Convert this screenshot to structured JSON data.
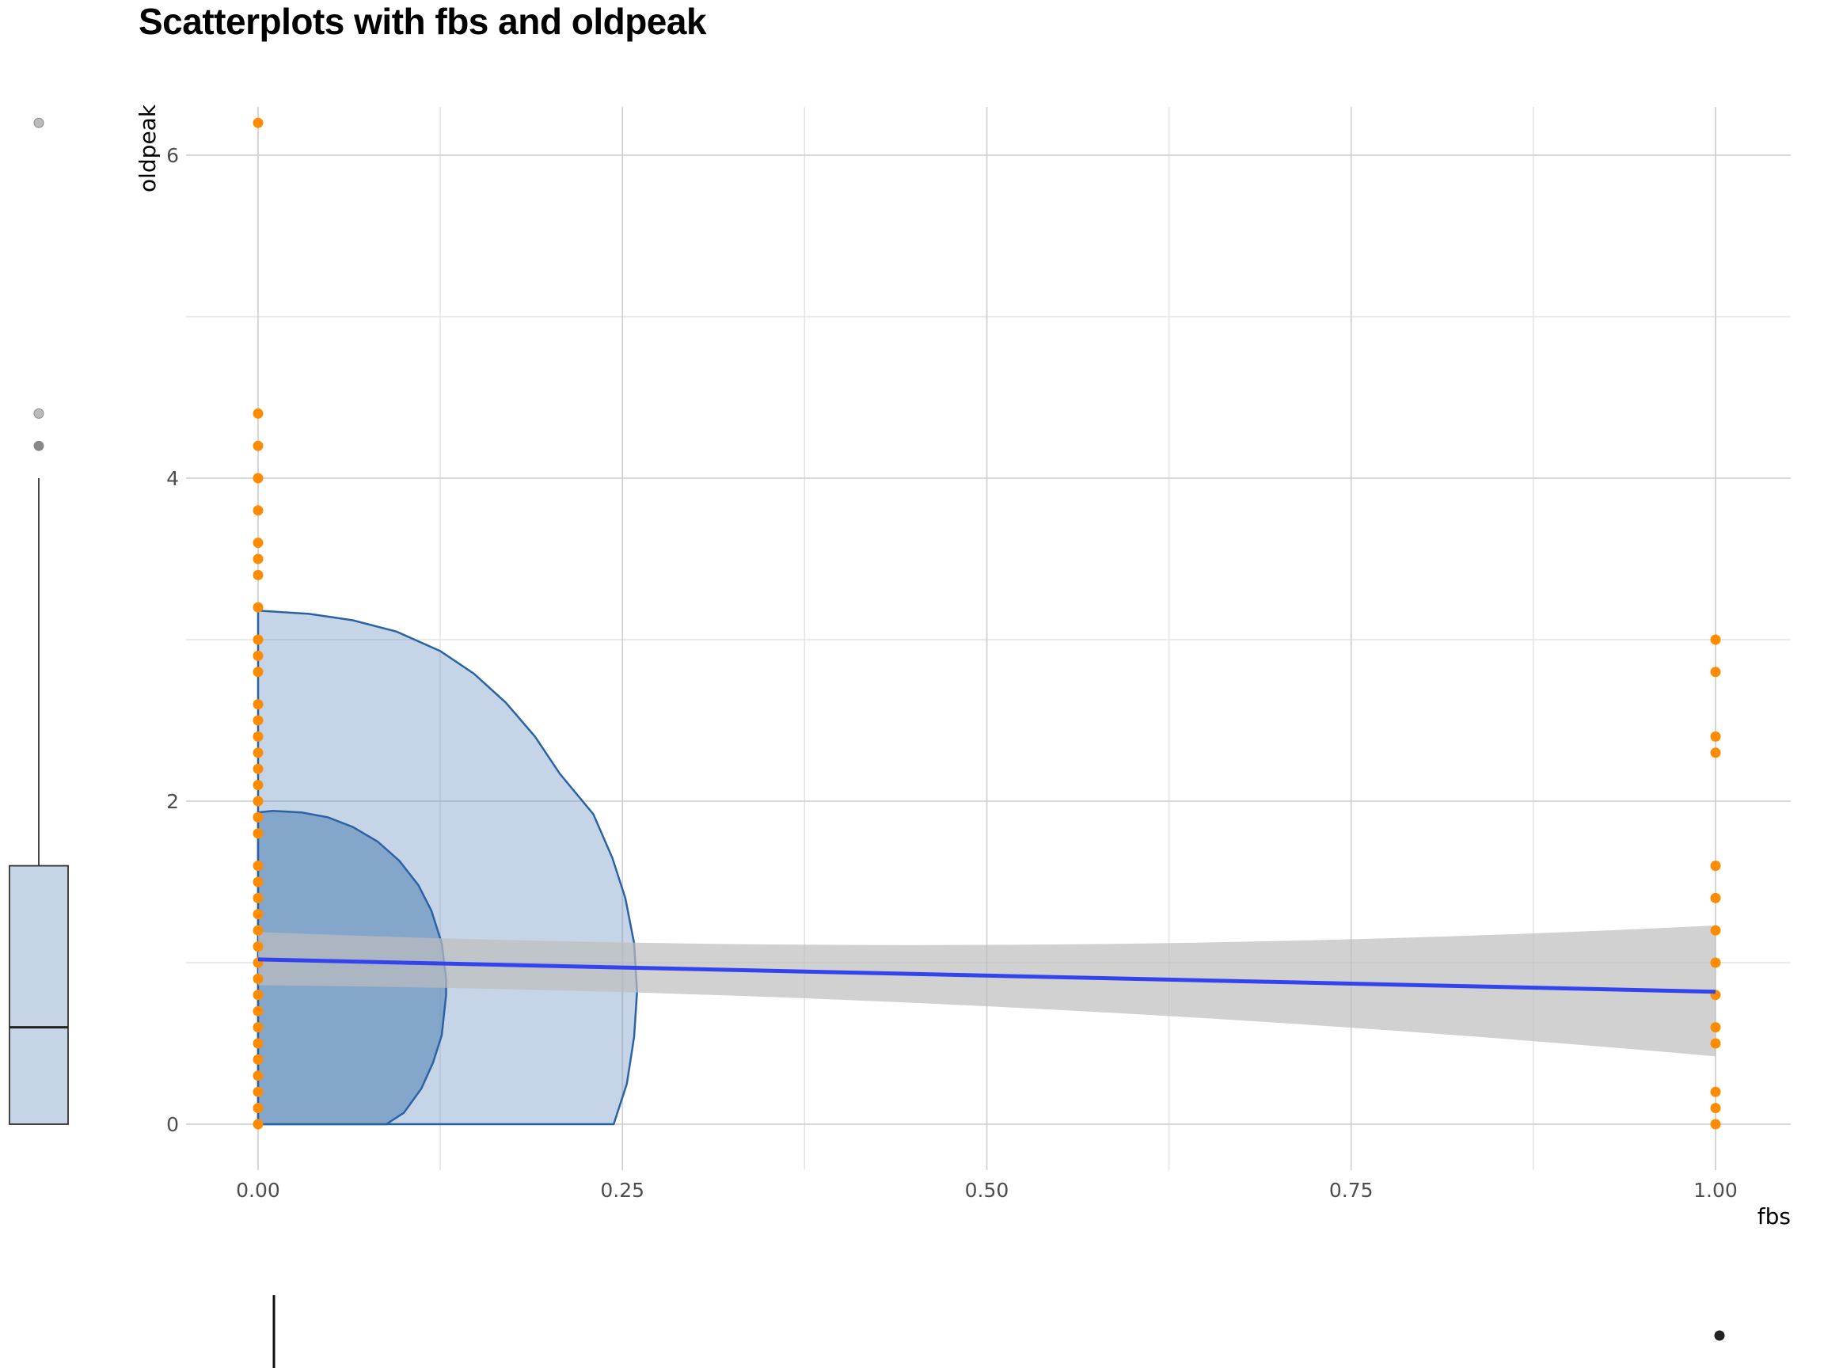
{
  "chart_data": {
    "type": "scatter",
    "title": "Scatterplots with fbs and oldpeak",
    "xlabel": "fbs",
    "ylabel": "oldpeak",
    "xlim": [
      -0.05,
      1.05
    ],
    "ylim": [
      -0.25,
      6.5
    ],
    "x_ticks": [
      "0.00",
      "0.25",
      "0.50",
      "0.75",
      "1.00"
    ],
    "y_ticks": [
      "0",
      "2",
      "4",
      "6"
    ],
    "grid": true,
    "point_color": "#ff8c00",
    "points": [
      {
        "x": 0,
        "y": 6.2
      },
      {
        "x": 0,
        "y": 4.4
      },
      {
        "x": 0,
        "y": 4.2
      },
      {
        "x": 0,
        "y": 4.0
      },
      {
        "x": 0,
        "y": 3.8
      },
      {
        "x": 0,
        "y": 3.6
      },
      {
        "x": 0,
        "y": 3.5
      },
      {
        "x": 0,
        "y": 3.4
      },
      {
        "x": 0,
        "y": 3.2
      },
      {
        "x": 0,
        "y": 3.0
      },
      {
        "x": 0,
        "y": 2.9
      },
      {
        "x": 0,
        "y": 2.8
      },
      {
        "x": 0,
        "y": 2.6
      },
      {
        "x": 0,
        "y": 2.5
      },
      {
        "x": 0,
        "y": 2.4
      },
      {
        "x": 0,
        "y": 2.3
      },
      {
        "x": 0,
        "y": 2.2
      },
      {
        "x": 0,
        "y": 2.1
      },
      {
        "x": 0,
        "y": 2.0
      },
      {
        "x": 0,
        "y": 1.9
      },
      {
        "x": 0,
        "y": 1.8
      },
      {
        "x": 0,
        "y": 1.6
      },
      {
        "x": 0,
        "y": 1.5
      },
      {
        "x": 0,
        "y": 1.4
      },
      {
        "x": 0,
        "y": 1.3
      },
      {
        "x": 0,
        "y": 1.2
      },
      {
        "x": 0,
        "y": 1.1
      },
      {
        "x": 0,
        "y": 1.0
      },
      {
        "x": 0,
        "y": 0.9
      },
      {
        "x": 0,
        "y": 0.8
      },
      {
        "x": 0,
        "y": 0.7
      },
      {
        "x": 0,
        "y": 0.6
      },
      {
        "x": 0,
        "y": 0.5
      },
      {
        "x": 0,
        "y": 0.4
      },
      {
        "x": 0,
        "y": 0.3
      },
      {
        "x": 0,
        "y": 0.2
      },
      {
        "x": 0,
        "y": 0.1
      },
      {
        "x": 0,
        "y": 0.0
      },
      {
        "x": 1,
        "y": 3.0
      },
      {
        "x": 1,
        "y": 2.8
      },
      {
        "x": 1,
        "y": 2.4
      },
      {
        "x": 1,
        "y": 2.3
      },
      {
        "x": 1,
        "y": 1.6
      },
      {
        "x": 1,
        "y": 1.4
      },
      {
        "x": 1,
        "y": 1.2
      },
      {
        "x": 1,
        "y": 1.0
      },
      {
        "x": 1,
        "y": 0.8
      },
      {
        "x": 1,
        "y": 0.6
      },
      {
        "x": 1,
        "y": 0.5
      },
      {
        "x": 1,
        "y": 0.2
      },
      {
        "x": 1,
        "y": 0.1
      },
      {
        "x": 1,
        "y": 0.0
      }
    ],
    "regression": {
      "color": "#3344ee",
      "band_color": "#bdbdbd",
      "line": [
        {
          "x": 0,
          "y": 1.02
        },
        {
          "x": 1,
          "y": 0.82
        }
      ],
      "band_upper": [
        {
          "x": 0,
          "y": 1.19
        },
        {
          "x": 0.5,
          "y": 1.11
        },
        {
          "x": 1,
          "y": 1.23
        }
      ],
      "band_lower": [
        {
          "x": 0,
          "y": 0.86
        },
        {
          "x": 0.5,
          "y": 0.73
        },
        {
          "x": 1,
          "y": 0.42
        }
      ]
    },
    "density_contours": {
      "fill_color": "#6e96c2",
      "stroke_color": "#2b62a3",
      "outer": [
        {
          "x": 0,
          "y": 0
        },
        {
          "x": 0,
          "y": 3.18
        },
        {
          "x": 0.035,
          "y": 3.16
        },
        {
          "x": 0.065,
          "y": 3.12
        },
        {
          "x": 0.095,
          "y": 3.05
        },
        {
          "x": 0.125,
          "y": 2.93
        },
        {
          "x": 0.148,
          "y": 2.79
        },
        {
          "x": 0.17,
          "y": 2.61
        },
        {
          "x": 0.19,
          "y": 2.4
        },
        {
          "x": 0.207,
          "y": 2.17
        },
        {
          "x": 0.23,
          "y": 1.92
        },
        {
          "x": 0.243,
          "y": 1.65
        },
        {
          "x": 0.252,
          "y": 1.4
        },
        {
          "x": 0.258,
          "y": 1.12
        },
        {
          "x": 0.26,
          "y": 0.82
        },
        {
          "x": 0.258,
          "y": 0.54
        },
        {
          "x": 0.253,
          "y": 0.25
        },
        {
          "x": 0.244,
          "y": 0
        }
      ],
      "inner": [
        {
          "x": 0,
          "y": 0
        },
        {
          "x": 0,
          "y": 1.93
        },
        {
          "x": 0.01,
          "y": 1.94
        },
        {
          "x": 0.03,
          "y": 1.93
        },
        {
          "x": 0.048,
          "y": 1.9
        },
        {
          "x": 0.065,
          "y": 1.84
        },
        {
          "x": 0.082,
          "y": 1.75
        },
        {
          "x": 0.097,
          "y": 1.63
        },
        {
          "x": 0.11,
          "y": 1.48
        },
        {
          "x": 0.119,
          "y": 1.32
        },
        {
          "x": 0.126,
          "y": 1.12
        },
        {
          "x": 0.129,
          "y": 0.9
        },
        {
          "x": 0.129,
          "y": 0.8
        },
        {
          "x": 0.126,
          "y": 0.55
        },
        {
          "x": 0.12,
          "y": 0.38
        },
        {
          "x": 0.112,
          "y": 0.22
        },
        {
          "x": 0.1,
          "y": 0.07
        },
        {
          "x": 0.088,
          "y": 0
        }
      ]
    },
    "marginal_boxplot_y": {
      "q1": 0,
      "median": 0.6,
      "q3": 1.6,
      "whisker_low": 0,
      "whisker_high": 4.0,
      "outliers": [
        4.2,
        4.4,
        6.2
      ],
      "fill_color": "#c5d5e5"
    },
    "marginal_boxplot_x": {
      "q1": 0,
      "median": 0,
      "q3": 0,
      "whisker_low": 0,
      "whisker_high": 0,
      "outliers": [
        1
      ]
    }
  }
}
